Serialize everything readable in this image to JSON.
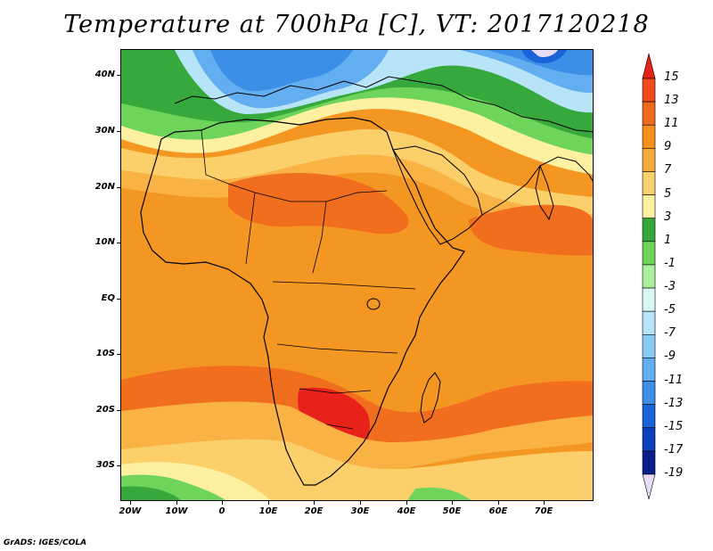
{
  "title": "Temperature at 700hPa [C], VT: 2017120218",
  "credit": "GrADS: IGES/COLA",
  "map": {
    "lat_labels": [
      "40N",
      "30N",
      "20N",
      "10N",
      "EQ",
      "10S",
      "20S",
      "30S"
    ],
    "lon_labels": [
      "20W",
      "10W",
      "0",
      "10E",
      "20E",
      "30E",
      "40E",
      "50E",
      "60E",
      "70E"
    ]
  },
  "colorbar": {
    "labels": [
      "15",
      "13",
      "11",
      "9",
      "7",
      "5",
      "3",
      "1",
      "-1",
      "-3",
      "-5",
      "-7",
      "-9",
      "-11",
      "-13",
      "-15",
      "-17",
      "-19"
    ],
    "colors": [
      "#e8221a",
      "#f2491c",
      "#f06a1e",
      "#f5901c",
      "#f7ad3c",
      "#f9d06b",
      "#fdf0a0",
      "#36a83c",
      "#6fd45a",
      "#a8f09a",
      "#d8f8f4",
      "#b8e4f8",
      "#8ccaf6",
      "#62aef0",
      "#3c8ee6",
      "#1a64d8",
      "#0e3fbf",
      "#0a1f8c",
      "#e6dcf8"
    ]
  },
  "fields": {
    "ocean_colors": {
      "warm": "#f49622",
      "hot": "#f06e1e",
      "mild": "#f9b244",
      "cool": "#fbd06a",
      "pale": "#fdf0a0",
      "green": "#36a83c",
      "lightgreen": "#6fd45a",
      "paleblue": "#b8e4f8",
      "blue": "#62aef0",
      "deepblue": "#3c8ee6"
    }
  }
}
